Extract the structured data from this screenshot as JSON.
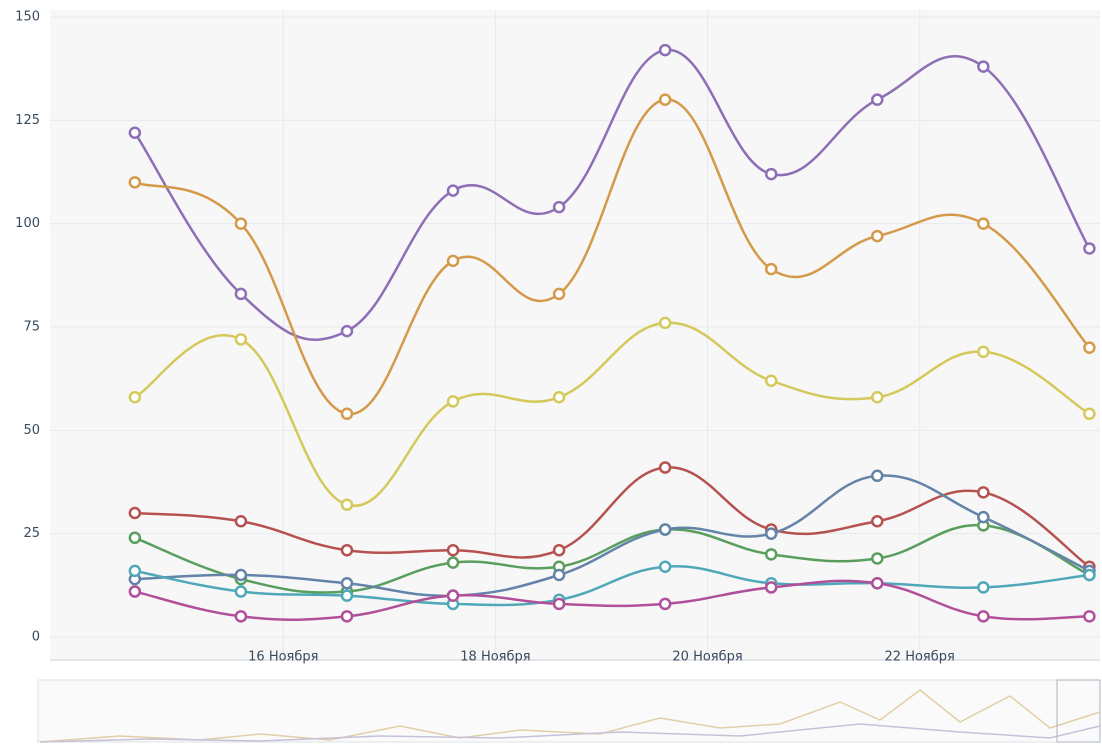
{
  "chart_data": {
    "type": "line",
    "x": [
      14.6,
      15.6,
      16.6,
      17.6,
      18.6,
      19.6,
      20.6,
      21.6,
      22.6,
      23.6
    ],
    "xlim": [
      13.8,
      23.7
    ],
    "xticks": [
      {
        "value": 16,
        "label": "16 Ноября"
      },
      {
        "value": 18,
        "label": "18 Ноября"
      },
      {
        "value": 20,
        "label": "20 Ноября"
      },
      {
        "value": 22,
        "label": "22 Ноября"
      }
    ],
    "ylim": [
      0,
      150
    ],
    "yticks": [
      0,
      25,
      50,
      75,
      100,
      125,
      150
    ],
    "grid": true,
    "series": [
      {
        "color": "#8e6fb5",
        "values": [
          122,
          83,
          74,
          108,
          104,
          142,
          112,
          130,
          138,
          94
        ]
      },
      {
        "color": "#d49a4a",
        "values": [
          110,
          100,
          54,
          91,
          83,
          130,
          89,
          97,
          100,
          70
        ]
      },
      {
        "color": "#d4c95a",
        "values": [
          58,
          72,
          32,
          57,
          58,
          76,
          62,
          58,
          69,
          54
        ]
      },
      {
        "color": "#b5524f",
        "values": [
          30,
          28,
          21,
          21,
          21,
          41,
          26,
          28,
          35,
          17
        ]
      },
      {
        "color": "#5a9e5e",
        "values": [
          24,
          14,
          11,
          18,
          17,
          26,
          20,
          19,
          27,
          15
        ]
      },
      {
        "color": "#6383a8",
        "values": [
          14,
          15,
          13,
          10,
          15,
          26,
          25,
          39,
          29,
          16
        ]
      },
      {
        "color": "#4fa8b8",
        "values": [
          16,
          11,
          10,
          8,
          9,
          17,
          13,
          13,
          12,
          15
        ]
      },
      {
        "color": "#b0509a",
        "values": [
          11,
          5,
          5,
          10,
          8,
          8,
          12,
          13,
          5,
          5
        ]
      }
    ]
  }
}
